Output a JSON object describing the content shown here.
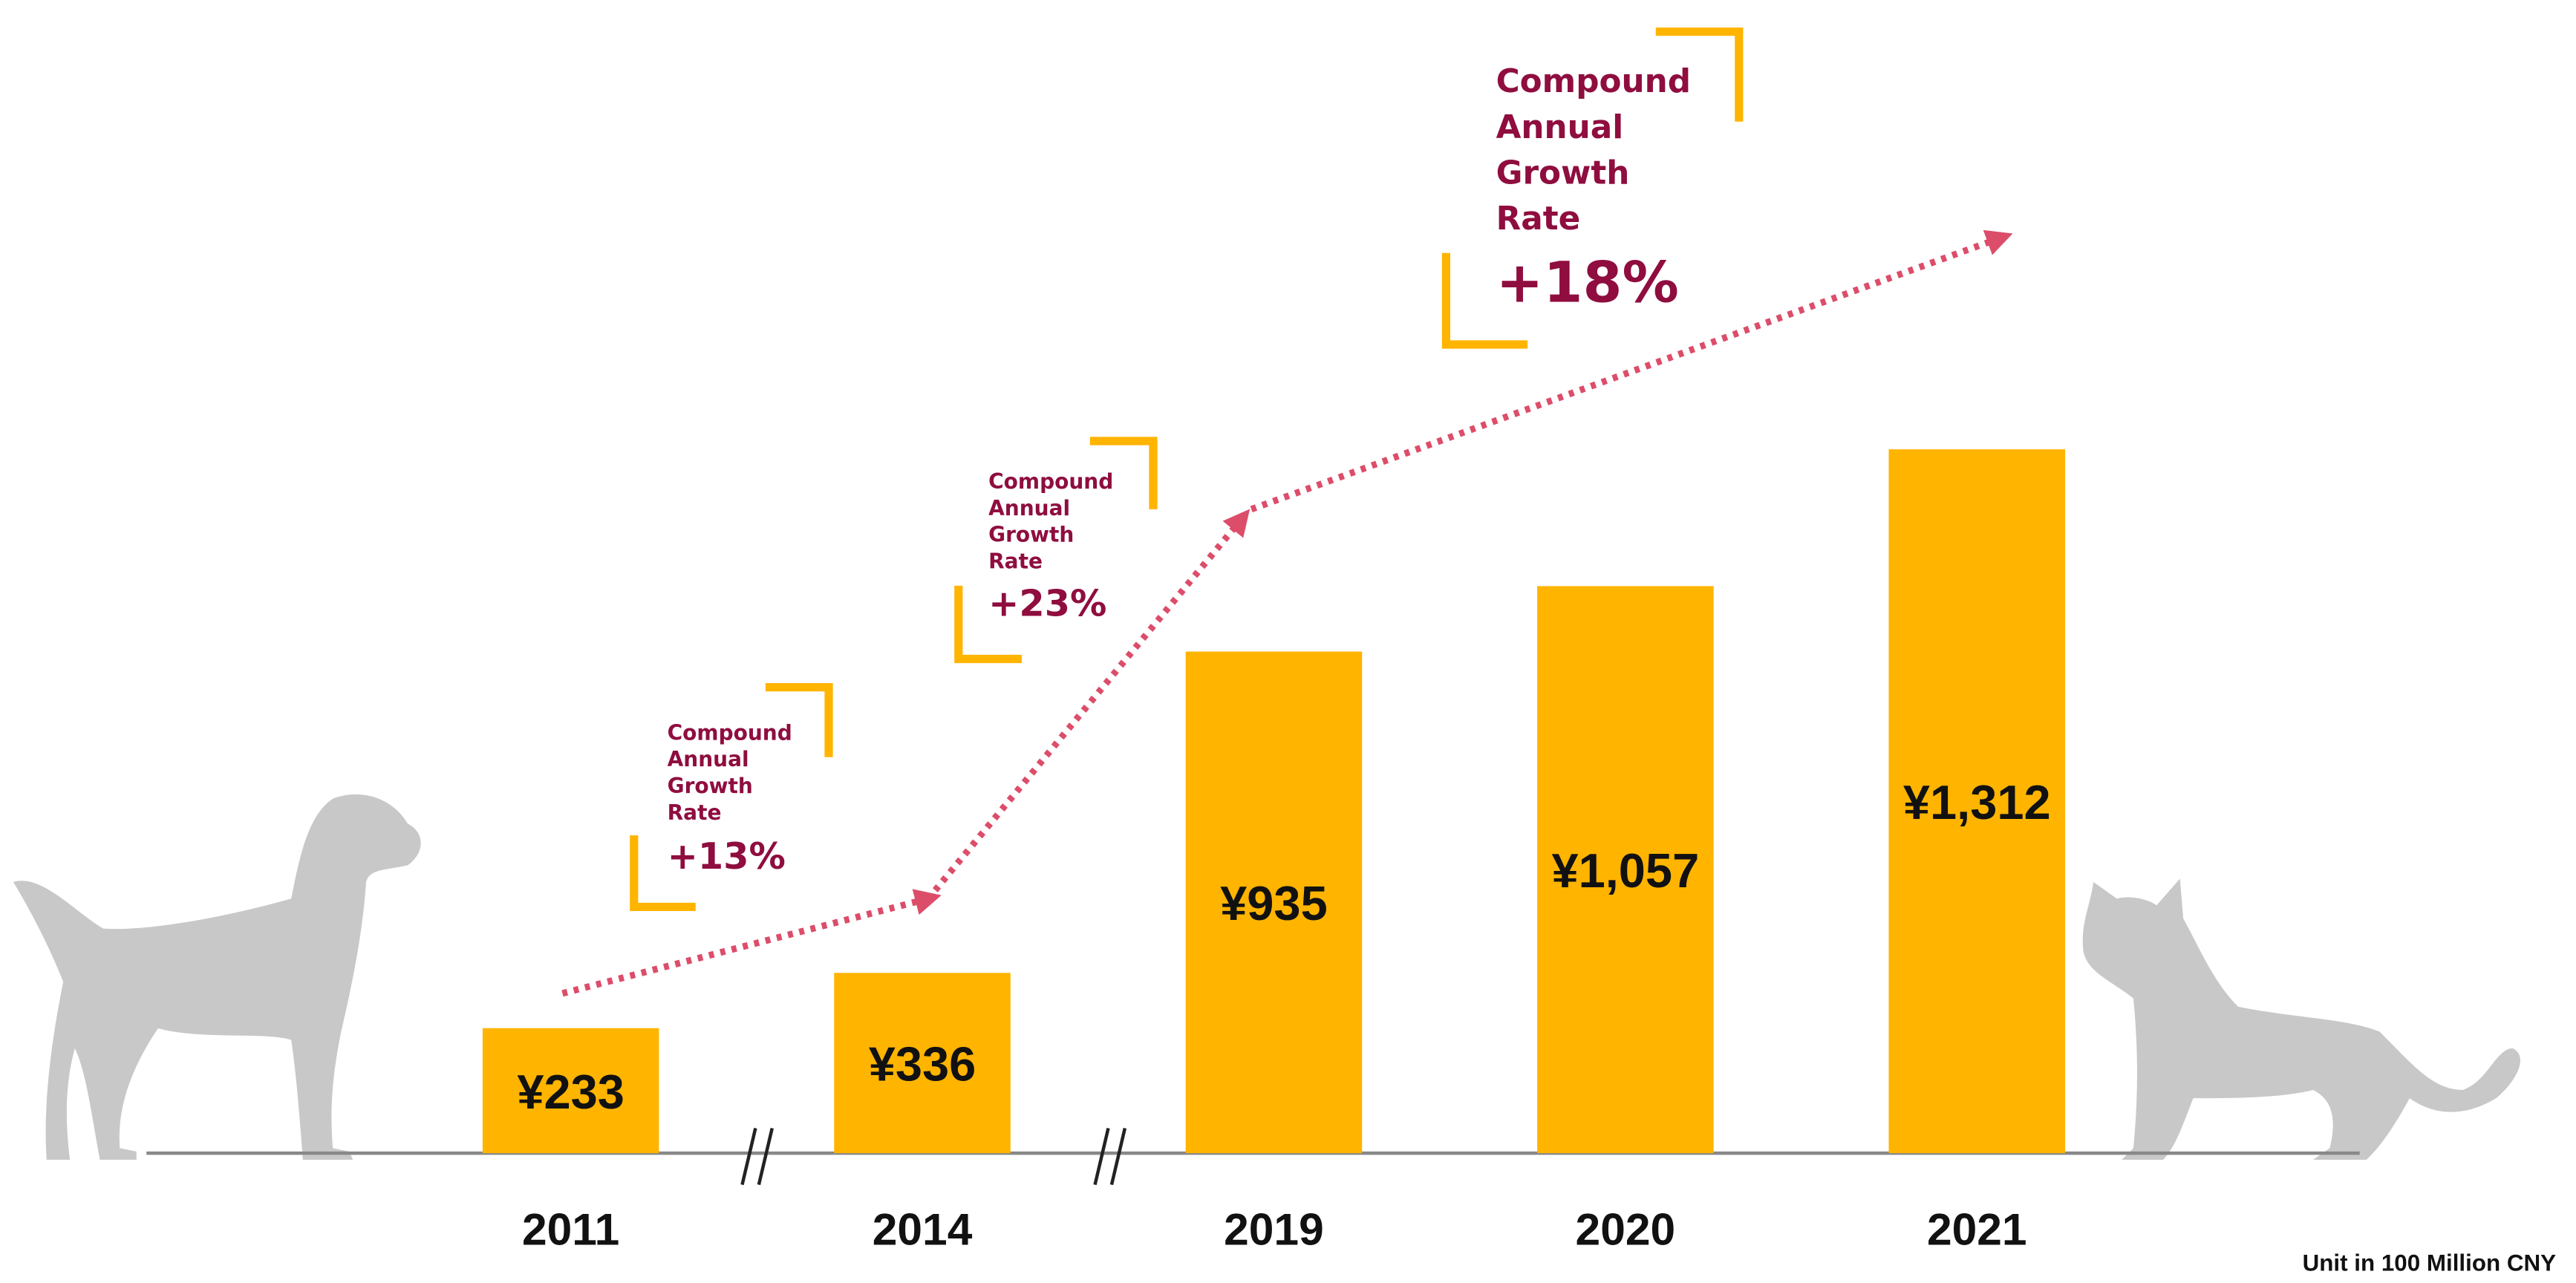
{
  "chart_data": {
    "type": "bar",
    "categories": [
      "2011",
      "2014",
      "2019",
      "2020",
      "2021"
    ],
    "values": [
      233,
      336,
      935,
      1057,
      1312
    ],
    "value_labels": [
      "¥233",
      "¥336",
      "¥935",
      "¥1,057",
      "¥1,312"
    ],
    "color": "#ffb400",
    "annotations": [
      {
        "label": [
          "Compound",
          "Annual",
          "Growth",
          "Rate"
        ],
        "value": "+13%"
      },
      {
        "label": [
          "Compound",
          "Annual",
          "Growth",
          "Rate"
        ],
        "value": "+23%"
      },
      {
        "label": [
          "Compound",
          "Annual",
          "Growth",
          "Rate"
        ],
        "value": "+18%"
      }
    ],
    "note": "Unit in 100 Million CNY"
  }
}
